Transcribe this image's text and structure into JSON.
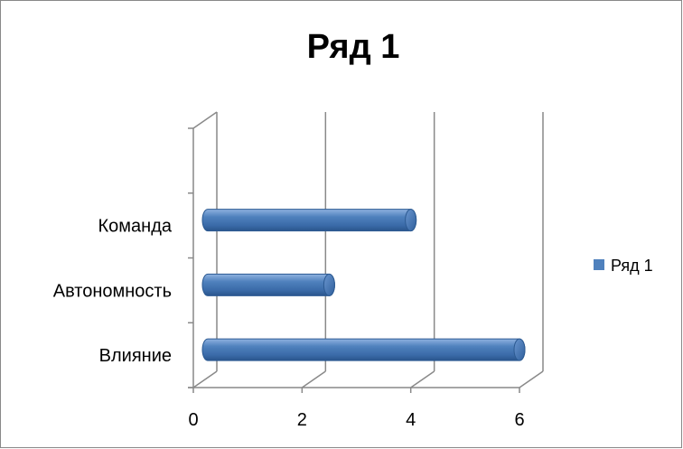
{
  "chart_data": {
    "type": "bar",
    "orientation": "horizontal",
    "title": "Ряд 1",
    "categories": [
      "Влияние",
      "Автономность",
      "Команда"
    ],
    "series": [
      {
        "name": "Ряд 1",
        "values": [
          6,
          2.5,
          4
        ],
        "color": "#4F81BD"
      }
    ],
    "xlim": [
      0,
      6
    ],
    "xticks": [
      "0",
      "2",
      "4",
      "6"
    ],
    "grid": true,
    "legend": "right",
    "style": "3d-cylinder"
  }
}
